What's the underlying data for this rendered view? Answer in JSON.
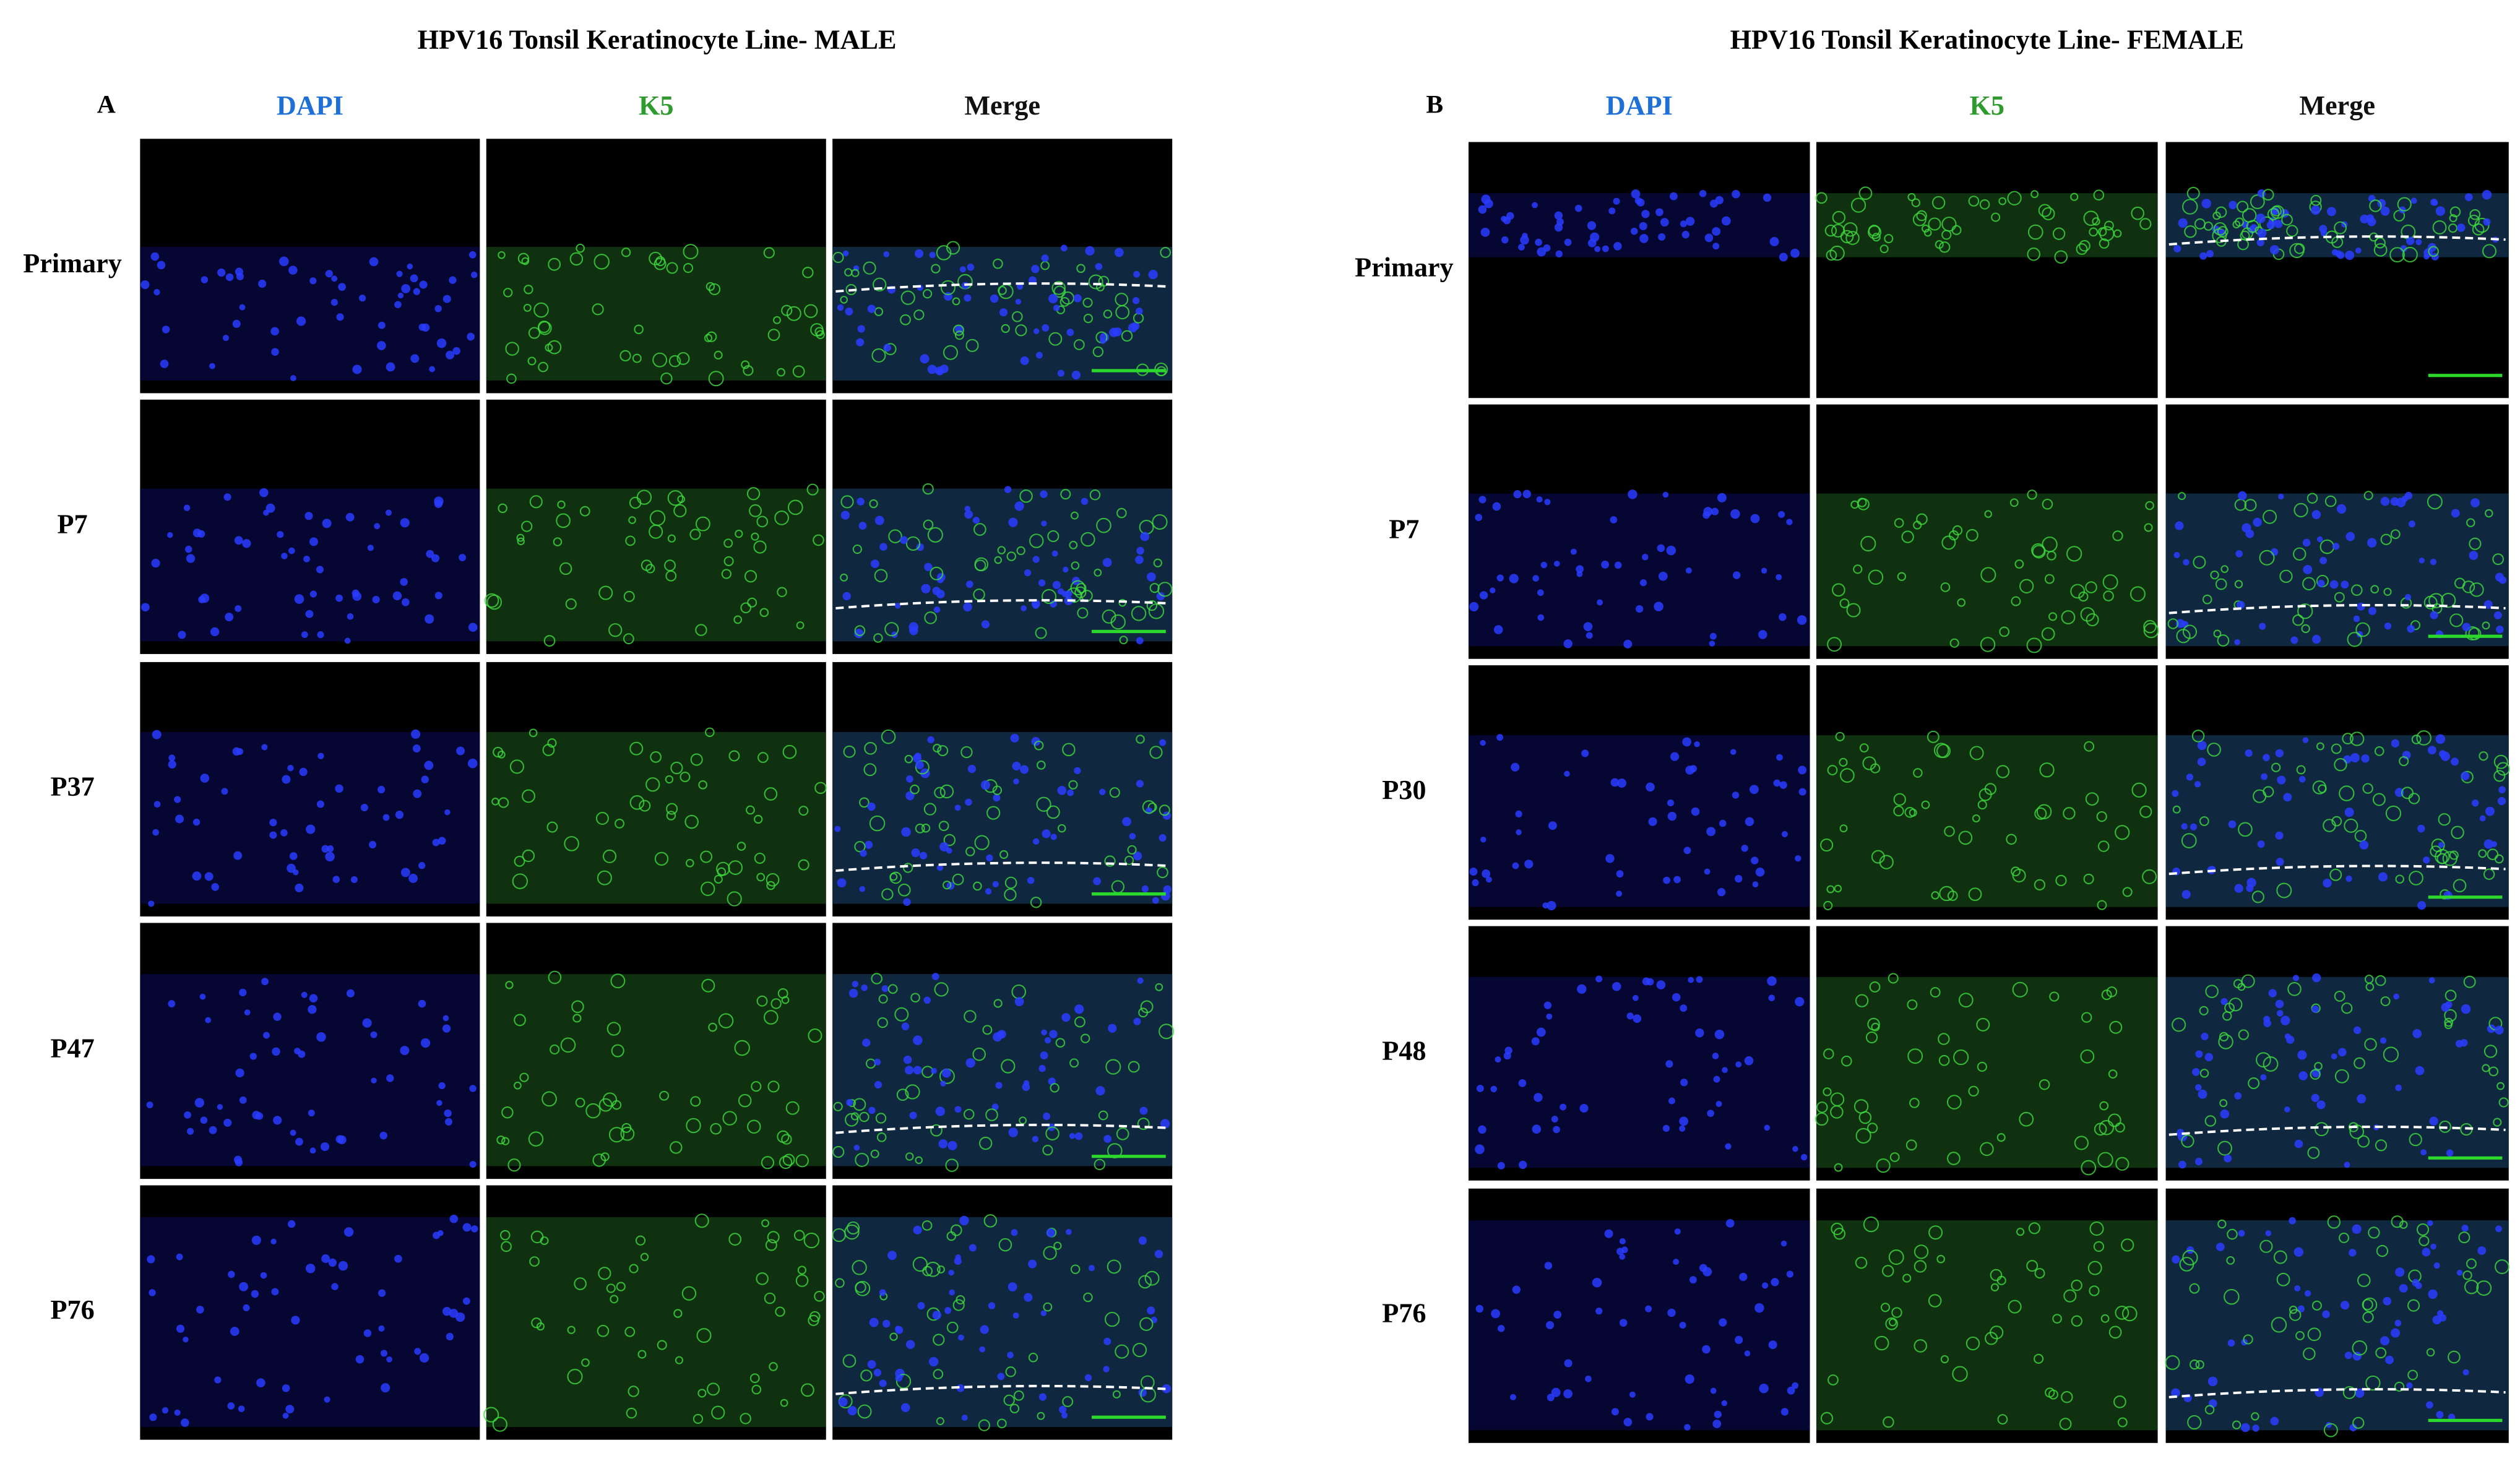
{
  "panels": [
    {
      "letter": "A",
      "title": "HPV16 Tonsil Keratinocyte Line- MALE",
      "columns": [
        "DAPI",
        "K5",
        "Merge"
      ],
      "rows": [
        "Primary",
        "P7",
        "P37",
        "P47",
        "P76"
      ]
    },
    {
      "letter": "B",
      "title": "HPV16 Tonsil Keratinocyte Line- FEMALE",
      "columns": [
        "DAPI",
        "K5",
        "Merge"
      ],
      "rows": [
        "Primary",
        "P7",
        "P30",
        "P48",
        "P76"
      ]
    }
  ]
}
